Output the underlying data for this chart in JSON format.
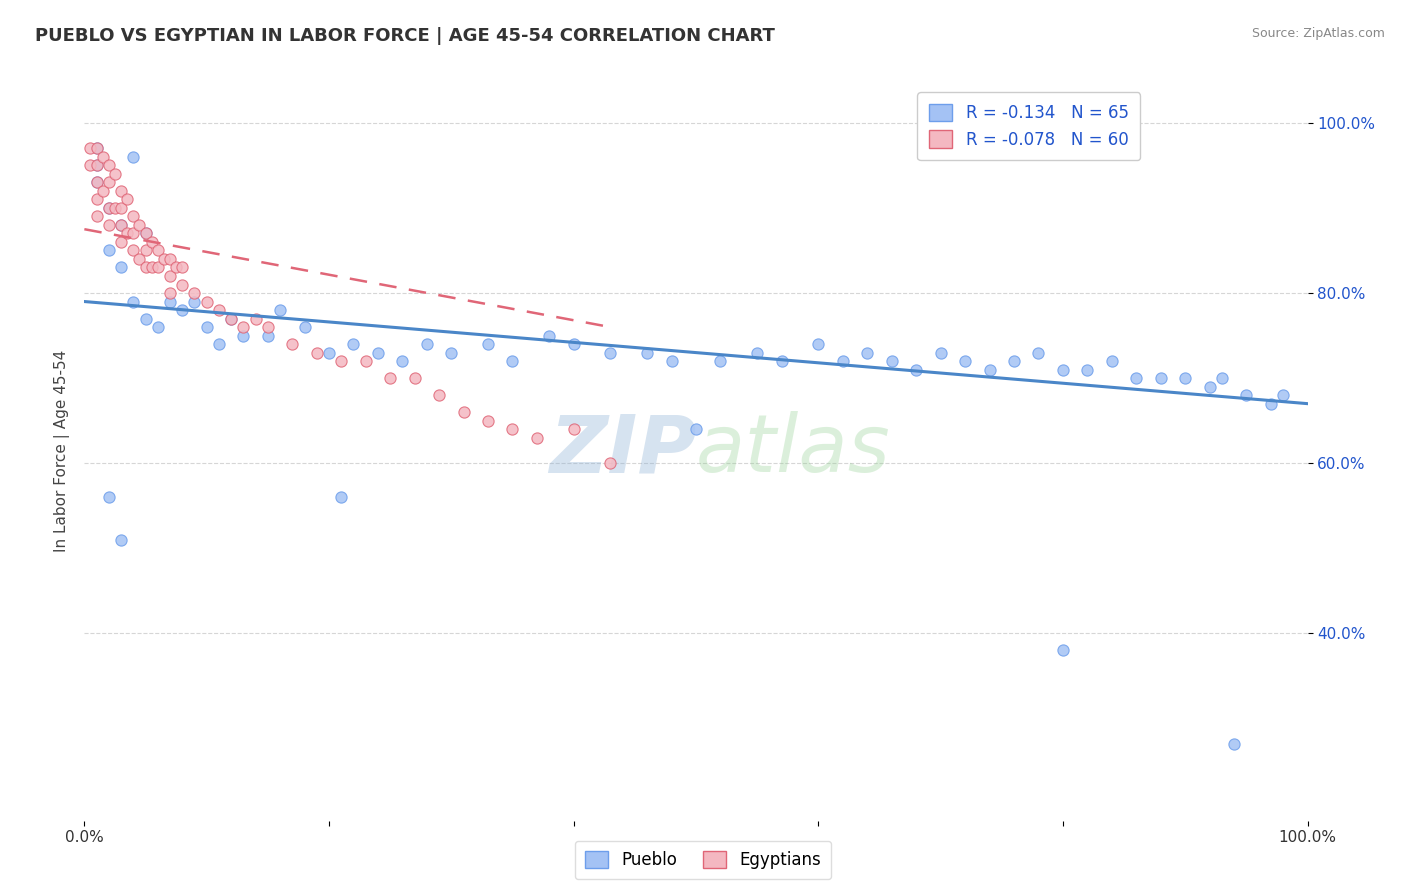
{
  "title": "PUEBLO VS EGYPTIAN IN LABOR FORCE | AGE 45-54 CORRELATION CHART",
  "source_text": "Source: ZipAtlas.com",
  "ylabel": "In Labor Force | Age 45-54",
  "xmin": 0.0,
  "xmax": 1.0,
  "ymin": 0.18,
  "ymax": 1.05,
  "blue_color": "#a4c2f4",
  "pink_color": "#f4b8c1",
  "blue_edge_color": "#6d9eeb",
  "pink_edge_color": "#e06677",
  "blue_line_color": "#4a86c8",
  "pink_line_color": "#e06677",
  "R_blue": -0.134,
  "N_blue": 65,
  "R_pink": -0.078,
  "N_pink": 60,
  "legend_R_N_color": "#2255cc",
  "watermark_color": "#c5d8f0",
  "grid_color": "#cccccc",
  "background_color": "#ffffff",
  "legend_label_blue": "Pueblo",
  "legend_label_pink": "Egyptians",
  "blue_trend_start_y": 0.79,
  "blue_trend_end_y": 0.67,
  "pink_trend_start_y": 0.875,
  "pink_trend_end_x": 0.43,
  "pink_trend_end_y": 0.76,
  "blue_points_x": [
    0.01,
    0.01,
    0.01,
    0.02,
    0.02,
    0.03,
    0.03,
    0.04,
    0.04,
    0.05,
    0.05,
    0.06,
    0.07,
    0.08,
    0.09,
    0.1,
    0.11,
    0.12,
    0.13,
    0.15,
    0.16,
    0.18,
    0.2,
    0.22,
    0.24,
    0.26,
    0.28,
    0.3,
    0.33,
    0.35,
    0.38,
    0.4,
    0.43,
    0.46,
    0.48,
    0.5,
    0.52,
    0.55,
    0.57,
    0.6,
    0.62,
    0.64,
    0.66,
    0.68,
    0.7,
    0.72,
    0.74,
    0.76,
    0.78,
    0.8,
    0.82,
    0.84,
    0.86,
    0.88,
    0.9,
    0.92,
    0.93,
    0.95,
    0.97,
    0.98,
    0.02,
    0.03,
    0.21,
    0.8,
    0.94
  ],
  "blue_points_y": [
    0.97,
    0.95,
    0.93,
    0.9,
    0.85,
    0.88,
    0.83,
    0.96,
    0.79,
    0.87,
    0.77,
    0.76,
    0.79,
    0.78,
    0.79,
    0.76,
    0.74,
    0.77,
    0.75,
    0.75,
    0.78,
    0.76,
    0.73,
    0.74,
    0.73,
    0.72,
    0.74,
    0.73,
    0.74,
    0.72,
    0.75,
    0.74,
    0.73,
    0.73,
    0.72,
    0.64,
    0.72,
    0.73,
    0.72,
    0.74,
    0.72,
    0.73,
    0.72,
    0.71,
    0.73,
    0.72,
    0.71,
    0.72,
    0.73,
    0.71,
    0.71,
    0.72,
    0.7,
    0.7,
    0.7,
    0.69,
    0.7,
    0.68,
    0.67,
    0.68,
    0.56,
    0.51,
    0.56,
    0.38,
    0.27
  ],
  "pink_points_x": [
    0.005,
    0.005,
    0.01,
    0.01,
    0.01,
    0.01,
    0.01,
    0.015,
    0.015,
    0.02,
    0.02,
    0.02,
    0.02,
    0.025,
    0.025,
    0.03,
    0.03,
    0.03,
    0.03,
    0.035,
    0.035,
    0.04,
    0.04,
    0.04,
    0.045,
    0.045,
    0.05,
    0.05,
    0.05,
    0.055,
    0.055,
    0.06,
    0.06,
    0.065,
    0.07,
    0.07,
    0.07,
    0.075,
    0.08,
    0.08,
    0.09,
    0.1,
    0.11,
    0.12,
    0.13,
    0.14,
    0.15,
    0.17,
    0.19,
    0.21,
    0.23,
    0.25,
    0.27,
    0.29,
    0.31,
    0.33,
    0.35,
    0.37,
    0.4,
    0.43
  ],
  "pink_points_y": [
    0.97,
    0.95,
    0.97,
    0.95,
    0.93,
    0.91,
    0.89,
    0.96,
    0.92,
    0.95,
    0.93,
    0.9,
    0.88,
    0.94,
    0.9,
    0.92,
    0.9,
    0.88,
    0.86,
    0.91,
    0.87,
    0.89,
    0.87,
    0.85,
    0.88,
    0.84,
    0.87,
    0.85,
    0.83,
    0.86,
    0.83,
    0.85,
    0.83,
    0.84,
    0.84,
    0.82,
    0.8,
    0.83,
    0.83,
    0.81,
    0.8,
    0.79,
    0.78,
    0.77,
    0.76,
    0.77,
    0.76,
    0.74,
    0.73,
    0.72,
    0.72,
    0.7,
    0.7,
    0.68,
    0.66,
    0.65,
    0.64,
    0.63,
    0.64,
    0.6
  ],
  "ytick_positions": [
    0.4,
    0.6,
    0.8,
    1.0
  ],
  "ytick_labels": [
    "40.0%",
    "60.0%",
    "80.0%",
    "100.0%"
  ],
  "xtick_positions": [
    0.0,
    0.2,
    0.4,
    0.6,
    0.8,
    1.0
  ],
  "xtick_labels": [
    "0.0%",
    "",
    "",
    "",
    "",
    "100.0%"
  ]
}
